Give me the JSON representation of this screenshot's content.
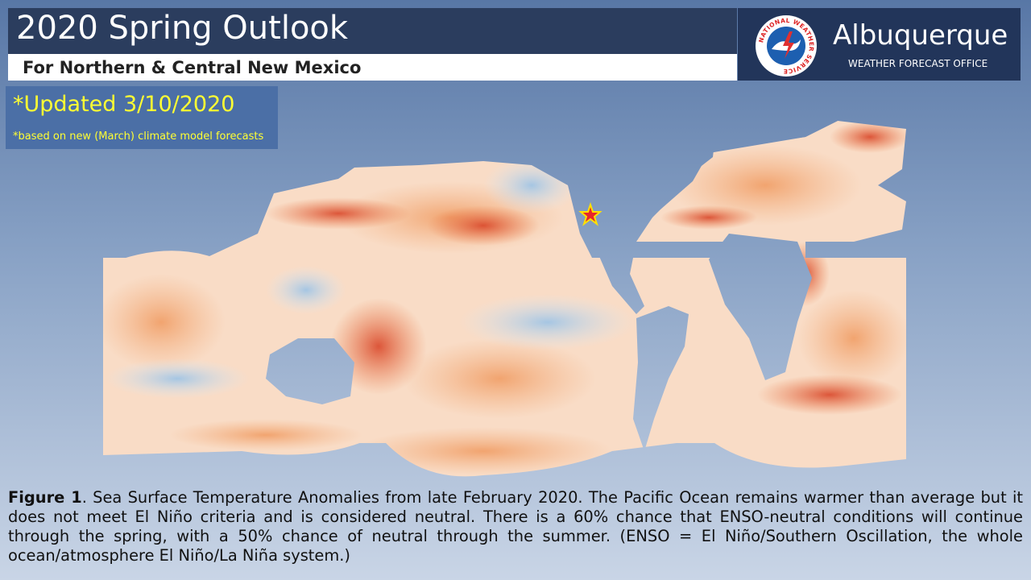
{
  "header": {
    "title": "2020 Spring Outlook",
    "subtitle": "For Northern & Central New Mexico"
  },
  "logo": {
    "seal_text": "NATIONAL WEATHER SERVICE",
    "office": "Albuquerque",
    "office_type": "WEATHER FORECAST OFFICE"
  },
  "update": {
    "headline": "*Updated 3/10/2020",
    "note": "*based on new (March) climate model forecasts"
  },
  "caption": {
    "label": "Figure 1",
    "text": ". Sea Surface Temperature Anomalies from late February 2020.  The Pacific Ocean remains warmer than average but it does not meet El Niño criteria and is considered neutral.  There is a 60% chance that ENSO-neutral conditions will continue through the spring, with a 50% chance of neutral through the summer. (ENSO = El Niño/Southern Oscillation, the whole ocean/atmosphere El Niño/La Niña system.)"
  }
}
